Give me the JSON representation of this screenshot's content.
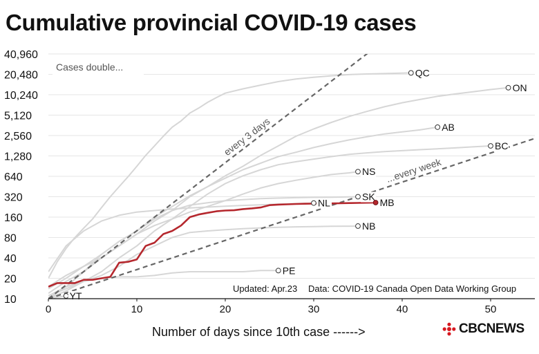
{
  "title": "Cumulative provincial COVID-19 cases",
  "logo": {
    "text": "CBCNEWS"
  },
  "colors": {
    "highlight": "#b5272d",
    "background_series": "#d6d6d6",
    "reference_line": "#666666",
    "text": "#111111"
  },
  "chart_data": {
    "type": "line",
    "title": "Cumulative provincial COVID-19 cases",
    "xlabel": "Number of days since 10th case ------>",
    "ylabel": "",
    "y_scale": "log2",
    "xlim": [
      0,
      55
    ],
    "ylim": [
      10,
      40960
    ],
    "x_ticks": [
      "0",
      "10",
      "20",
      "30",
      "40",
      "50"
    ],
    "y_ticks": [
      "10",
      "20",
      "40",
      "80",
      "160",
      "320",
      "640",
      "1,280",
      "2,560",
      "5,120",
      "10,240",
      "20,480",
      "40,960"
    ],
    "y_tick_values": [
      10,
      20,
      40,
      80,
      160,
      320,
      640,
      1280,
      2560,
      5120,
      10240,
      20480,
      40960
    ],
    "grid": true,
    "legend_box_label": "Cases double...",
    "reference_lines": [
      {
        "label": "every 3 days",
        "doubling_days": 3,
        "start": [
          0,
          10
        ]
      },
      {
        "label": "...every week",
        "doubling_days": 7,
        "start": [
          0,
          10
        ]
      }
    ],
    "highlight_series": "MB",
    "series": [
      {
        "name": "QC",
        "label_x": 41,
        "label_y": 21500,
        "points": [
          [
            0,
            20
          ],
          [
            1,
            35
          ],
          [
            2,
            55
          ],
          [
            3,
            80
          ],
          [
            4,
            110
          ],
          [
            5,
            150
          ],
          [
            6,
            220
          ],
          [
            7,
            320
          ],
          [
            8,
            450
          ],
          [
            9,
            630
          ],
          [
            10,
            900
          ],
          [
            11,
            1300
          ],
          [
            12,
            1800
          ],
          [
            13,
            2500
          ],
          [
            14,
            3400
          ],
          [
            15,
            4200
          ],
          [
            16,
            5500
          ],
          [
            17,
            6500
          ],
          [
            18,
            7900
          ],
          [
            19,
            9300
          ],
          [
            20,
            10800
          ],
          [
            22,
            12500
          ],
          [
            24,
            14200
          ],
          [
            26,
            16000
          ],
          [
            28,
            17500
          ],
          [
            30,
            18500
          ],
          [
            32,
            19500
          ],
          [
            34,
            20300
          ],
          [
            36,
            20700
          ],
          [
            38,
            21000
          ],
          [
            40,
            21300
          ],
          [
            41,
            21500
          ]
        ]
      },
      {
        "name": "ON",
        "label_x": 52,
        "label_y": 13000,
        "points": [
          [
            0,
            15
          ],
          [
            2,
            22
          ],
          [
            4,
            30
          ],
          [
            6,
            40
          ],
          [
            8,
            60
          ],
          [
            10,
            90
          ],
          [
            12,
            140
          ],
          [
            14,
            200
          ],
          [
            16,
            320
          ],
          [
            18,
            450
          ],
          [
            20,
            650
          ],
          [
            22,
            900
          ],
          [
            24,
            1300
          ],
          [
            26,
            1800
          ],
          [
            28,
            2500
          ],
          [
            30,
            3200
          ],
          [
            32,
            4000
          ],
          [
            34,
            4900
          ],
          [
            36,
            5800
          ],
          [
            38,
            6800
          ],
          [
            40,
            7800
          ],
          [
            42,
            8700
          ],
          [
            44,
            9700
          ],
          [
            46,
            10500
          ],
          [
            48,
            11300
          ],
          [
            50,
            12200
          ],
          [
            52,
            13000
          ]
        ]
      },
      {
        "name": "AB",
        "label_x": 44,
        "label_y": 3400,
        "points": [
          [
            0,
            14
          ],
          [
            2,
            20
          ],
          [
            4,
            30
          ],
          [
            6,
            45
          ],
          [
            8,
            70
          ],
          [
            10,
            100
          ],
          [
            12,
            160
          ],
          [
            14,
            230
          ],
          [
            16,
            330
          ],
          [
            18,
            450
          ],
          [
            20,
            600
          ],
          [
            22,
            800
          ],
          [
            24,
            1000
          ],
          [
            26,
            1250
          ],
          [
            28,
            1450
          ],
          [
            30,
            1700
          ],
          [
            32,
            1950
          ],
          [
            34,
            2200
          ],
          [
            36,
            2450
          ],
          [
            38,
            2700
          ],
          [
            40,
            2900
          ],
          [
            42,
            3100
          ],
          [
            44,
            3400
          ]
        ]
      },
      {
        "name": "BC",
        "label_x": 50,
        "label_y": 1800,
        "points": [
          [
            0,
            10
          ],
          [
            2,
            13
          ],
          [
            4,
            18
          ],
          [
            6,
            25
          ],
          [
            8,
            40
          ],
          [
            10,
            60
          ],
          [
            12,
            100
          ],
          [
            14,
            150
          ],
          [
            16,
            230
          ],
          [
            18,
            350
          ],
          [
            20,
            500
          ],
          [
            22,
            650
          ],
          [
            24,
            800
          ],
          [
            26,
            950
          ],
          [
            28,
            1050
          ],
          [
            30,
            1150
          ],
          [
            32,
            1250
          ],
          [
            34,
            1350
          ],
          [
            36,
            1420
          ],
          [
            38,
            1480
          ],
          [
            40,
            1530
          ],
          [
            42,
            1580
          ],
          [
            44,
            1630
          ],
          [
            46,
            1680
          ],
          [
            48,
            1740
          ],
          [
            50,
            1800
          ]
        ]
      },
      {
        "name": "NS",
        "label_x": 35,
        "label_y": 750,
        "points": [
          [
            0,
            12
          ],
          [
            2,
            18
          ],
          [
            4,
            25
          ],
          [
            6,
            40
          ],
          [
            8,
            60
          ],
          [
            10,
            90
          ],
          [
            12,
            120
          ],
          [
            14,
            150
          ],
          [
            16,
            190
          ],
          [
            18,
            230
          ],
          [
            20,
            280
          ],
          [
            22,
            350
          ],
          [
            24,
            430
          ],
          [
            26,
            500
          ],
          [
            28,
            560
          ],
          [
            30,
            620
          ],
          [
            32,
            680
          ],
          [
            34,
            720
          ],
          [
            35,
            750
          ]
        ]
      },
      {
        "name": "SK",
        "label_x": 35,
        "label_y": 320,
        "points": [
          [
            0,
            10
          ],
          [
            2,
            15
          ],
          [
            4,
            25
          ],
          [
            6,
            45
          ],
          [
            8,
            70
          ],
          [
            10,
            100
          ],
          [
            12,
            150
          ],
          [
            14,
            200
          ],
          [
            16,
            240
          ],
          [
            18,
            260
          ],
          [
            20,
            280
          ],
          [
            22,
            290
          ],
          [
            24,
            300
          ],
          [
            26,
            305
          ],
          [
            28,
            310
          ],
          [
            30,
            313
          ],
          [
            32,
            315
          ],
          [
            34,
            318
          ],
          [
            35,
            320
          ]
        ]
      },
      {
        "name": "NL",
        "label_x": 30,
        "label_y": 258,
        "points": [
          [
            0,
            25
          ],
          [
            2,
            60
          ],
          [
            4,
            100
          ],
          [
            6,
            140
          ],
          [
            8,
            170
          ],
          [
            10,
            190
          ],
          [
            12,
            200
          ],
          [
            14,
            210
          ],
          [
            16,
            218
          ],
          [
            18,
            225
          ],
          [
            20,
            232
          ],
          [
            22,
            238
          ],
          [
            24,
            243
          ],
          [
            26,
            248
          ],
          [
            28,
            253
          ],
          [
            30,
            258
          ]
        ]
      },
      {
        "name": "NB",
        "label_x": 35,
        "label_y": 118,
        "points": [
          [
            0,
            11
          ],
          [
            2,
            15
          ],
          [
            4,
            18
          ],
          [
            6,
            22
          ],
          [
            8,
            30
          ],
          [
            10,
            45
          ],
          [
            12,
            60
          ],
          [
            14,
            80
          ],
          [
            16,
            95
          ],
          [
            18,
            100
          ],
          [
            20,
            104
          ],
          [
            22,
            108
          ],
          [
            24,
            111
          ],
          [
            26,
            113
          ],
          [
            28,
            115
          ],
          [
            30,
            116
          ],
          [
            32,
            117
          ],
          [
            35,
            118
          ]
        ]
      },
      {
        "name": "PE",
        "label_x": 26,
        "label_y": 26,
        "points": [
          [
            0,
            11
          ],
          [
            2,
            14
          ],
          [
            4,
            18
          ],
          [
            6,
            20
          ],
          [
            8,
            21
          ],
          [
            10,
            21
          ],
          [
            12,
            22
          ],
          [
            14,
            24
          ],
          [
            16,
            25
          ],
          [
            18,
            25
          ],
          [
            20,
            25
          ],
          [
            22,
            25
          ],
          [
            24,
            26
          ],
          [
            26,
            26
          ]
        ]
      },
      {
        "name": "YT",
        "label_x": 2,
        "label_y": 11,
        "points": [
          [
            0,
            10
          ],
          [
            1,
            10.5
          ],
          [
            2,
            11
          ]
        ]
      },
      {
        "name": "MB",
        "label_x": 37,
        "label_y": 262,
        "points": [
          [
            0,
            15
          ],
          [
            1,
            17
          ],
          [
            2,
            17
          ],
          [
            3,
            17
          ],
          [
            4,
            19
          ],
          [
            5,
            19
          ],
          [
            6,
            20
          ],
          [
            7,
            21
          ],
          [
            8,
            34
          ],
          [
            9,
            35
          ],
          [
            10,
            38
          ],
          [
            11,
            60
          ],
          [
            12,
            67
          ],
          [
            13,
            90
          ],
          [
            14,
            100
          ],
          [
            15,
            120
          ],
          [
            16,
            160
          ],
          [
            17,
            175
          ],
          [
            18,
            185
          ],
          [
            19,
            195
          ],
          [
            20,
            200
          ],
          [
            21,
            202
          ],
          [
            22,
            210
          ],
          [
            23,
            215
          ],
          [
            24,
            222
          ],
          [
            25,
            240
          ],
          [
            26,
            245
          ],
          [
            27,
            247
          ],
          [
            28,
            250
          ],
          [
            29,
            252
          ],
          [
            30,
            253
          ],
          [
            31,
            254
          ],
          [
            32,
            255
          ],
          [
            33,
            256
          ],
          [
            34,
            258
          ],
          [
            35,
            259
          ],
          [
            36,
            261
          ],
          [
            37,
            262
          ]
        ]
      }
    ],
    "annotations": [
      "Updated: Apr.23",
      "Data: COVID-19 Canada Open Data Working Group"
    ]
  }
}
